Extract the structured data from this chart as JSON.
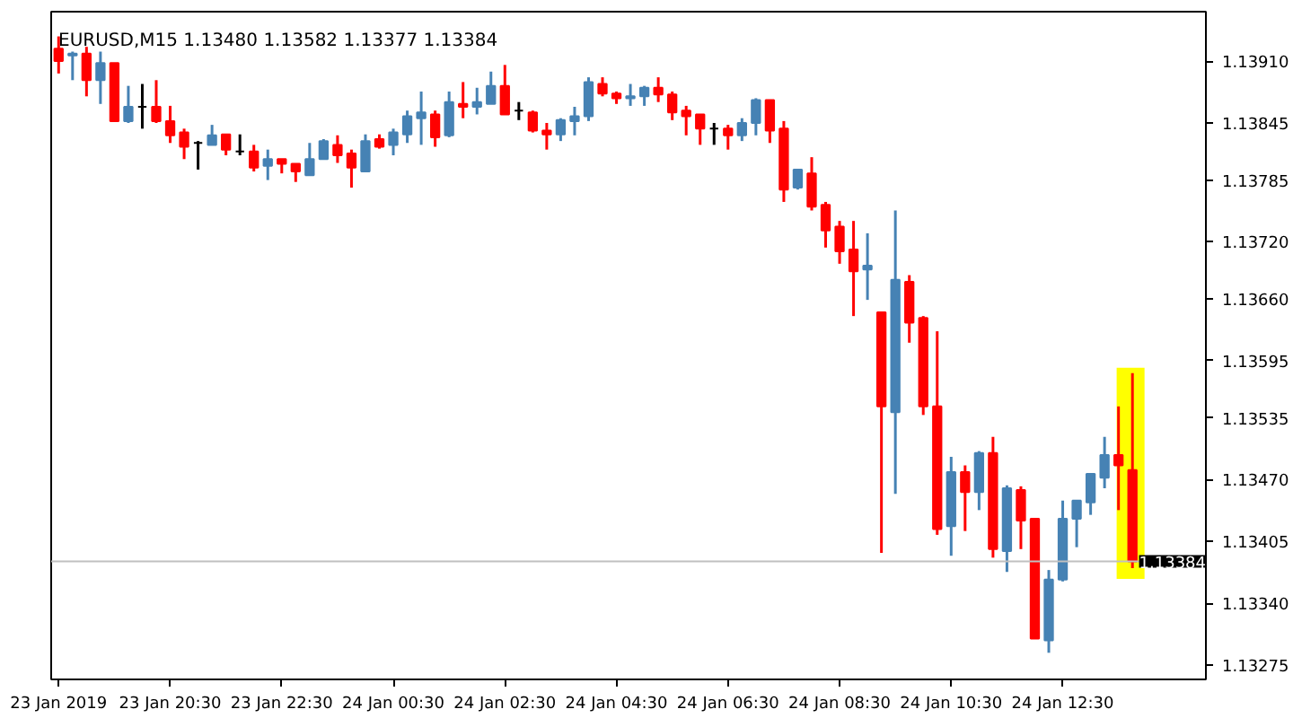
{
  "chart_data": {
    "type": "candlestick",
    "title": "EURUSD,M15  1.13480 1.13582 1.13377 1.13384",
    "x": [
      "2019-01-23T18:30",
      "2019-01-23T18:45",
      "2019-01-23T19:00",
      "2019-01-23T19:15",
      "2019-01-23T19:30",
      "2019-01-23T19:45",
      "2019-01-23T20:00",
      "2019-01-23T20:15",
      "2019-01-23T20:30",
      "2019-01-23T20:45",
      "2019-01-23T21:00",
      "2019-01-23T21:15",
      "2019-01-23T21:30",
      "2019-01-23T21:45",
      "2019-01-23T22:00",
      "2019-01-23T22:15",
      "2019-01-23T22:30",
      "2019-01-23T22:45",
      "2019-01-23T23:00",
      "2019-01-23T23:15",
      "2019-01-23T23:30",
      "2019-01-23T23:45",
      "2019-01-24T00:00",
      "2019-01-24T00:15",
      "2019-01-24T00:30",
      "2019-01-24T00:45",
      "2019-01-24T01:00",
      "2019-01-24T01:15",
      "2019-01-24T01:30",
      "2019-01-24T01:45",
      "2019-01-24T02:00",
      "2019-01-24T02:15",
      "2019-01-24T02:30",
      "2019-01-24T02:45",
      "2019-01-24T03:00",
      "2019-01-24T03:15",
      "2019-01-24T03:30",
      "2019-01-24T03:45",
      "2019-01-24T04:00",
      "2019-01-24T04:15",
      "2019-01-24T04:30",
      "2019-01-24T04:45",
      "2019-01-24T05:00",
      "2019-01-24T05:15",
      "2019-01-24T05:30",
      "2019-01-24T05:45",
      "2019-01-24T06:00",
      "2019-01-24T06:15",
      "2019-01-24T06:30",
      "2019-01-24T06:45",
      "2019-01-24T07:00",
      "2019-01-24T07:15",
      "2019-01-24T07:30",
      "2019-01-24T07:45",
      "2019-01-24T08:00",
      "2019-01-24T08:15",
      "2019-01-24T08:30",
      "2019-01-24T08:45",
      "2019-01-24T09:00",
      "2019-01-24T09:15",
      "2019-01-24T09:30",
      "2019-01-24T09:45",
      "2019-01-24T10:00",
      "2019-01-24T10:15",
      "2019-01-24T10:30",
      "2019-01-24T10:45",
      "2019-01-24T11:00",
      "2019-01-24T11:15",
      "2019-01-24T11:30",
      "2019-01-24T11:45",
      "2019-01-24T12:00",
      "2019-01-24T12:15",
      "2019-01-24T12:30",
      "2019-01-24T12:45",
      "2019-01-24T13:00",
      "2019-01-24T13:15",
      "2019-01-24T13:30",
      "2019-01-24T13:45"
    ],
    "ohlc": [
      [
        1.13923,
        1.13936,
        1.13897,
        1.1391
      ],
      [
        1.13916,
        1.1392,
        1.1389,
        1.13918
      ],
      [
        1.13918,
        1.13925,
        1.13873,
        1.1389
      ],
      [
        1.1389,
        1.1392,
        1.13865,
        1.13908
      ],
      [
        1.13908,
        1.13908,
        1.13847,
        1.13847
      ],
      [
        1.13847,
        1.13884,
        1.13845,
        1.13862
      ],
      [
        1.13862,
        1.13886,
        1.13839,
        1.13862
      ],
      [
        1.13862,
        1.1389,
        1.13845,
        1.13847
      ],
      [
        1.13847,
        1.13863,
        1.13824,
        1.13832
      ],
      [
        1.13835,
        1.13839,
        1.13807,
        1.1382
      ],
      [
        1.13824,
        1.13826,
        1.13796,
        1.13824
      ],
      [
        1.13822,
        1.13843,
        1.13822,
        1.13832
      ],
      [
        1.13833,
        1.13833,
        1.13811,
        1.13817
      ],
      [
        1.13815,
        1.13833,
        1.13811,
        1.13815
      ],
      [
        1.13815,
        1.13822,
        1.13794,
        1.13798
      ],
      [
        1.138,
        1.13817,
        1.13785,
        1.13807
      ],
      [
        1.13807,
        1.13807,
        1.13792,
        1.13802
      ],
      [
        1.13802,
        1.13802,
        1.13783,
        1.13794
      ],
      [
        1.1379,
        1.13824,
        1.1379,
        1.13807
      ],
      [
        1.13807,
        1.13828,
        1.13807,
        1.13826
      ],
      [
        1.13822,
        1.13832,
        1.13803,
        1.13811
      ],
      [
        1.13813,
        1.13817,
        1.13777,
        1.13798
      ],
      [
        1.13794,
        1.13833,
        1.13794,
        1.13826
      ],
      [
        1.13828,
        1.13833,
        1.13818,
        1.1382
      ],
      [
        1.13822,
        1.13839,
        1.13811,
        1.13835
      ],
      [
        1.13833,
        1.13858,
        1.13824,
        1.13852
      ],
      [
        1.1385,
        1.13878,
        1.13822,
        1.13856
      ],
      [
        1.13854,
        1.13858,
        1.1382,
        1.1383
      ],
      [
        1.13832,
        1.13878,
        1.1383,
        1.13867
      ],
      [
        1.13865,
        1.13888,
        1.1385,
        1.13862
      ],
      [
        1.13862,
        1.13882,
        1.13854,
        1.13867
      ],
      [
        1.13865,
        1.13899,
        1.13865,
        1.13884
      ],
      [
        1.13884,
        1.13906,
        1.13854,
        1.13854
      ],
      [
        1.13858,
        1.13867,
        1.13848,
        1.13858
      ],
      [
        1.13856,
        1.13858,
        1.13835,
        1.13837
      ],
      [
        1.13837,
        1.13845,
        1.13817,
        1.13833
      ],
      [
        1.13833,
        1.1385,
        1.13826,
        1.13848
      ],
      [
        1.13847,
        1.13862,
        1.13832,
        1.13852
      ],
      [
        1.13852,
        1.13893,
        1.13847,
        1.13888
      ],
      [
        1.13886,
        1.13893,
        1.13873,
        1.13876
      ],
      [
        1.13876,
        1.13878,
        1.13865,
        1.13871
      ],
      [
        1.13871,
        1.13886,
        1.13863,
        1.13873
      ],
      [
        1.13873,
        1.13884,
        1.13863,
        1.13882
      ],
      [
        1.13882,
        1.13893,
        1.13867,
        1.13875
      ],
      [
        1.13875,
        1.13878,
        1.13848,
        1.13856
      ],
      [
        1.13858,
        1.13863,
        1.13832,
        1.13852
      ],
      [
        1.13854,
        1.13854,
        1.13822,
        1.13839
      ],
      [
        1.13839,
        1.13845,
        1.13822,
        1.13839
      ],
      [
        1.13839,
        1.13843,
        1.13817,
        1.13832
      ],
      [
        1.13832,
        1.1385,
        1.13826,
        1.13845
      ],
      [
        1.13845,
        1.13871,
        1.13832,
        1.13869
      ],
      [
        1.13869,
        1.13869,
        1.13824,
        1.13837
      ],
      [
        1.13839,
        1.13847,
        1.13762,
        1.13775
      ],
      [
        1.13777,
        1.13796,
        1.13775,
        1.13796
      ],
      [
        1.13792,
        1.13809,
        1.13753,
        1.13757
      ],
      [
        1.13759,
        1.13762,
        1.13714,
        1.13732
      ],
      [
        1.13736,
        1.13742,
        1.13697,
        1.1371
      ],
      [
        1.13712,
        1.13742,
        1.13642,
        1.13689
      ],
      [
        1.13691,
        1.13729,
        1.13659,
        1.13695
      ],
      [
        1.13646,
        1.13646,
        1.13393,
        1.13547
      ],
      [
        1.13541,
        1.13753,
        1.13455,
        1.1368
      ],
      [
        1.13678,
        1.13685,
        1.13614,
        1.13635
      ],
      [
        1.1364,
        1.13642,
        1.13538,
        1.13547
      ],
      [
        1.13547,
        1.13626,
        1.13412,
        1.13418
      ],
      [
        1.13421,
        1.13494,
        1.1339,
        1.13478
      ],
      [
        1.13478,
        1.13485,
        1.13416,
        1.13457
      ],
      [
        1.13457,
        1.135,
        1.13438,
        1.13498
      ],
      [
        1.13498,
        1.13515,
        1.13388,
        1.13397
      ],
      [
        1.13395,
        1.13464,
        1.13373,
        1.13461
      ],
      [
        1.13459,
        1.13463,
        1.13397,
        1.13427
      ],
      [
        1.13429,
        1.13429,
        1.13303,
        1.13303
      ],
      [
        1.13301,
        1.13375,
        1.13288,
        1.13365
      ],
      [
        1.13365,
        1.13448,
        1.13363,
        1.13429
      ],
      [
        1.13429,
        1.13448,
        1.13399,
        1.13448
      ],
      [
        1.13446,
        1.13476,
        1.13433,
        1.13476
      ],
      [
        1.13472,
        1.13515,
        1.13461,
        1.13496
      ],
      [
        1.13496,
        1.13547,
        1.13438,
        1.13485
      ],
      [
        1.1348,
        1.13582,
        1.13377,
        1.13384
      ]
    ],
    "colors": [
      "#ff0000",
      "#4682b4",
      "#ff0000",
      "#4682b4",
      "#ff0000",
      "#4682b4",
      "#000000",
      "#ff0000",
      "#ff0000",
      "#ff0000",
      "#000000",
      "#4682b4",
      "#ff0000",
      "#000000",
      "#ff0000",
      "#4682b4",
      "#ff0000",
      "#ff0000",
      "#4682b4",
      "#4682b4",
      "#ff0000",
      "#ff0000",
      "#4682b4",
      "#ff0000",
      "#4682b4",
      "#4682b4",
      "#4682b4",
      "#ff0000",
      "#4682b4",
      "#ff0000",
      "#4682b4",
      "#4682b4",
      "#ff0000",
      "#000000",
      "#ff0000",
      "#ff0000",
      "#4682b4",
      "#4682b4",
      "#4682b4",
      "#ff0000",
      "#ff0000",
      "#4682b4",
      "#4682b4",
      "#ff0000",
      "#ff0000",
      "#ff0000",
      "#ff0000",
      "#000000",
      "#ff0000",
      "#4682b4",
      "#4682b4",
      "#ff0000",
      "#ff0000",
      "#4682b4",
      "#ff0000",
      "#ff0000",
      "#ff0000",
      "#ff0000",
      "#4682b4",
      "#ff0000",
      "#4682b4",
      "#ff0000",
      "#ff0000",
      "#ff0000",
      "#4682b4",
      "#ff0000",
      "#4682b4",
      "#ff0000",
      "#4682b4",
      "#ff0000",
      "#ff0000",
      "#4682b4",
      "#4682b4",
      "#4682b4",
      "#4682b4",
      "#4682b4",
      "#ff0000",
      "#ff0000"
    ],
    "xlim": [
      "2019-01-23T18:22",
      "2019-01-24T15:04"
    ],
    "xticks": [
      {
        "value": "2019-01-23T18:30",
        "label": "23 Jan 2019"
      },
      {
        "value": "2019-01-23T20:30",
        "label": "23 Jan 20:30"
      },
      {
        "value": "2019-01-23T22:30",
        "label": "23 Jan 22:30"
      },
      {
        "value": "2019-01-24T00:30",
        "label": "24 Jan 00:30"
      },
      {
        "value": "2019-01-24T02:30",
        "label": "24 Jan 02:30"
      },
      {
        "value": "2019-01-24T04:30",
        "label": "24 Jan 04:30"
      },
      {
        "value": "2019-01-24T06:30",
        "label": "24 Jan 06:30"
      },
      {
        "value": "2019-01-24T08:30",
        "label": "24 Jan 08:30"
      },
      {
        "value": "2019-01-24T10:30",
        "label": "24 Jan 10:30"
      },
      {
        "value": "2019-01-24T12:30",
        "label": "24 Jan 12:30"
      }
    ],
    "ylim": [
      1.1326,
      1.13962
    ],
    "yticks": [
      {
        "value": 1.1391,
        "label": "1.13910"
      },
      {
        "value": 1.13845,
        "label": "1.13845"
      },
      {
        "value": 1.13785,
        "label": "1.13785"
      },
      {
        "value": 1.1372,
        "label": "1.13720"
      },
      {
        "value": 1.1366,
        "label": "1.13660"
      },
      {
        "value": 1.13595,
        "label": "1.13595"
      },
      {
        "value": 1.13535,
        "label": "1.13535"
      },
      {
        "value": 1.1347,
        "label": "1.13470"
      },
      {
        "value": 1.13405,
        "label": "1.13405"
      },
      {
        "value": 1.1334,
        "label": "1.13340"
      },
      {
        "value": 1.13275,
        "label": "1.13275"
      }
    ],
    "ref_lines": [
      {
        "axis": "y",
        "value": 1.13384,
        "label": "1.13384",
        "color": "#c0c0c0"
      }
    ],
    "bands": [
      {
        "axis": "x",
        "from": "2019-01-24T13:28",
        "to": "2019-01-24T13:58",
        "color": "#ffff00"
      }
    ],
    "grid": false
  }
}
